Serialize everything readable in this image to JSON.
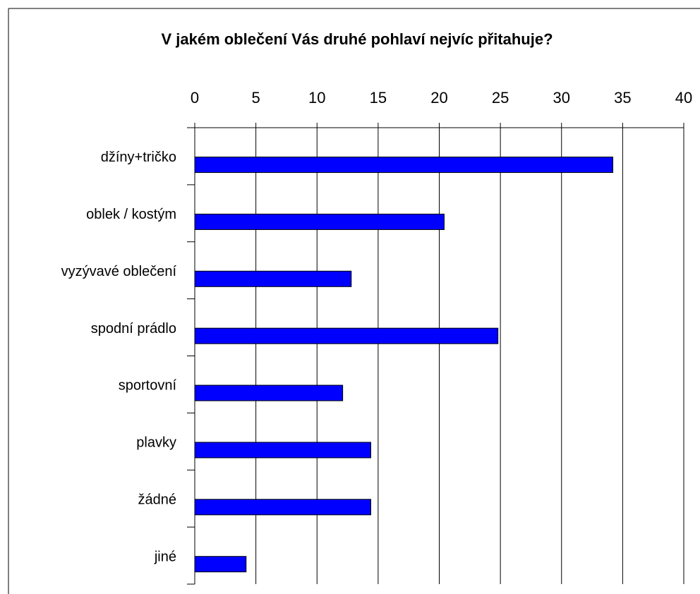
{
  "chart_data": {
    "type": "bar",
    "orientation": "horizontal",
    "title": "V jakém oblečení Vás druhé pohlaví nejvíc přitahuje?",
    "categories": [
      "džíny+tričko",
      "oblek / kostým",
      "vyzývavé oblečení",
      "spodní prádlo",
      "sportovní",
      "plavky",
      "žádné",
      "jiné"
    ],
    "values": [
      34.2,
      20.4,
      12.8,
      24.8,
      12.1,
      14.4,
      14.4,
      4.2
    ],
    "color": "#0000ff",
    "xlim": [
      0,
      40
    ],
    "xticks": [
      0,
      5,
      10,
      15,
      20,
      25,
      30,
      35,
      40
    ],
    "grid": true
  }
}
